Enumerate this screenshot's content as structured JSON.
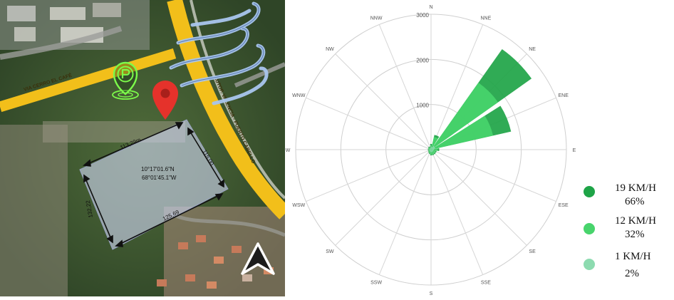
{
  "map": {
    "road_left": "VIA CERRO EL CAFÉ",
    "road_right": "AUTOP. VALENCIA - PUERTO CABELLO",
    "coords_line1": "10°17'01.6\"N",
    "coords_line2": "68°01'45.1\"W",
    "dim_top": "113,29m",
    "dim_right": "115,00",
    "dim_left": "132,22",
    "dim_bottom": "125,69",
    "icons": [
      "parking-icon",
      "location-pin-icon",
      "wind-icon",
      "north-arrow-icon"
    ]
  },
  "chart_data": {
    "type": "polar_bar",
    "directions": [
      "N",
      "NNE",
      "NE",
      "ENE",
      "E",
      "ESE",
      "SE",
      "SSE",
      "S",
      "SSW",
      "SW",
      "WSW",
      "W",
      "WNW",
      "NW",
      "NNW"
    ],
    "ring_labels": [
      "1000",
      "2000",
      "3000"
    ],
    "rmax": 3300,
    "series": [
      {
        "name": "19 KM/H",
        "color": "#1ea447",
        "values": [
          140,
          370,
          3000,
          2000,
          200,
          140,
          140,
          140,
          140,
          110,
          90,
          70,
          80,
          70,
          90,
          80
        ]
      },
      {
        "name": "12 KM/H",
        "color": "#48d46c",
        "values": [
          100,
          320,
          2000,
          1550,
          160,
          120,
          120,
          120,
          120,
          90,
          70,
          60,
          60,
          60,
          70,
          60
        ]
      },
      {
        "name": "1 KM/H",
        "color": "#8ddbb0",
        "values": [
          60,
          70,
          110,
          100,
          70,
          60,
          60,
          60,
          60,
          50,
          50,
          40,
          40,
          40,
          40,
          40
        ]
      }
    ],
    "legend": [
      {
        "speed": "19 KM/H",
        "pct": "66%",
        "color": "#1ea447"
      },
      {
        "speed": "12 KM/H",
        "pct": "32%",
        "color": "#48d46c"
      },
      {
        "speed": "1 KM/H",
        "pct": "2%",
        "color": "#8ddbb0"
      }
    ]
  }
}
